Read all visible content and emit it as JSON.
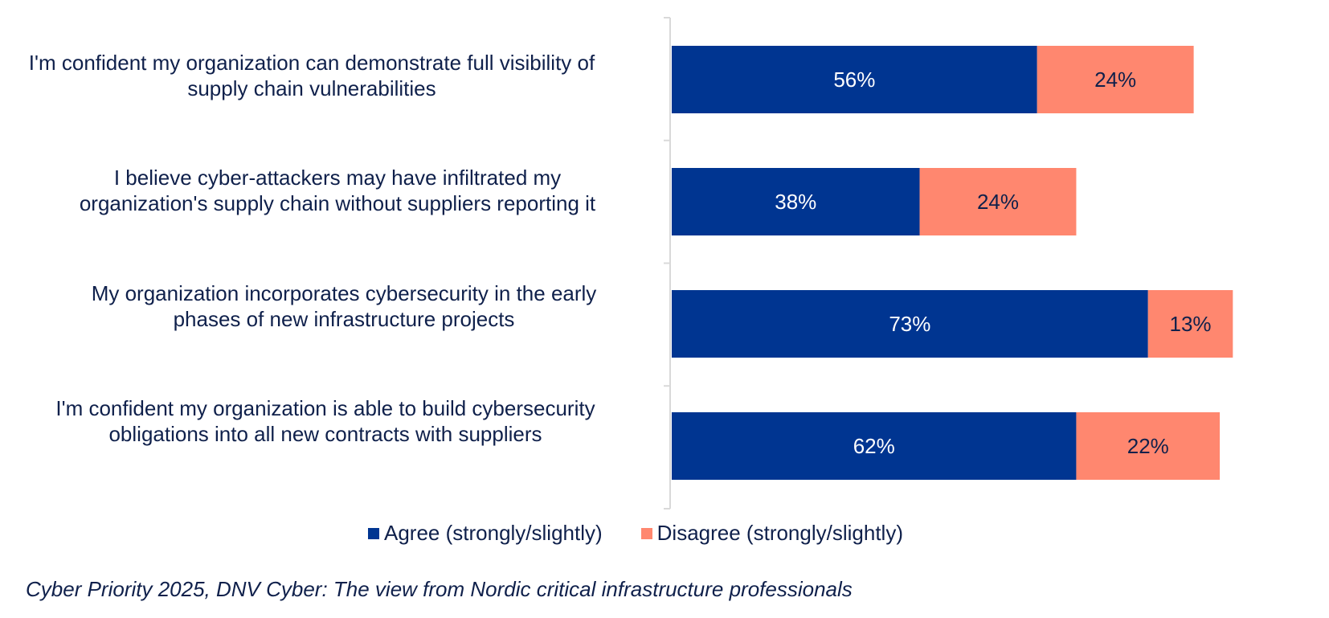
{
  "chart_data": {
    "type": "bar",
    "orientation": "horizontal",
    "stacked": true,
    "categories": [
      "I'm confident my organization can demonstrate full visibility of supply chain vulnerabilities",
      "I believe cyber-attackers may have infiltrated my organization's supply chain without suppliers reporting it",
      "My organization incorporates cybersecurity in the early phases of new infrastructure projects",
      "I'm confident my organization is able to build cybersecurity obligations into all new contracts with suppliers"
    ],
    "series": [
      {
        "name": "Agree (strongly/slightly)",
        "values": [
          56,
          38,
          73,
          62
        ],
        "labels": [
          "56%",
          "38%",
          "73%",
          "62%"
        ],
        "color": "#003591"
      },
      {
        "name": "Disagree (strongly/slightly)",
        "values": [
          24,
          24,
          13,
          22
        ],
        "labels": [
          "24%",
          "24%",
          "13%",
          "22%"
        ],
        "color": "#ff876f"
      }
    ],
    "xlim": [
      0,
      100
    ],
    "grid": false,
    "legend_position": "bottom"
  },
  "category_lines": [
    [
      "I'm confident my organization can demonstrate full visibility of",
      "supply chain vulnerabilities"
    ],
    [
      "I believe cyber-attackers may have infiltrated my",
      "organization's supply chain without suppliers reporting it"
    ],
    [
      "My organization incorporates cybersecurity in the early",
      "phases of new infrastructure projects"
    ],
    [
      "I'm confident my organization is able to build cybersecurity",
      "obligations into all new contracts with suppliers"
    ]
  ],
  "legend": {
    "agree_label": "Agree (strongly/slightly)",
    "disagree_label": "Disagree (strongly/slightly)"
  },
  "source": "Cyber Priority 2025, DNV Cyber: The view from Nordic critical infrastructure professionals",
  "colors": {
    "agree": "#003591",
    "disagree": "#ff876f",
    "text": "#0f204b",
    "axis": "#d9d9d9"
  }
}
